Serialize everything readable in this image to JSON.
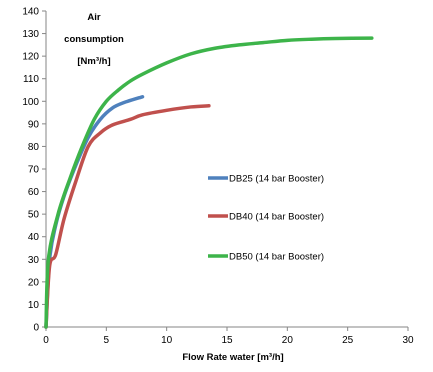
{
  "chart_data": {
    "type": "line",
    "xlabel": "Flow Rate water [m³/h]",
    "ylabel_lines": [
      "Air",
      "consumption",
      "[Nm³/h]"
    ],
    "xlim": [
      0,
      30
    ],
    "ylim": [
      0,
      140
    ],
    "x_ticks": [
      0,
      5,
      10,
      15,
      20,
      25,
      30
    ],
    "y_ticks": [
      0,
      10,
      20,
      30,
      40,
      50,
      60,
      70,
      80,
      90,
      100,
      110,
      120,
      130,
      140
    ],
    "grid": false,
    "legend_position": "right",
    "series": [
      {
        "name": "DB25 (14 bar Booster)",
        "color": "#4F81BD",
        "points": [
          [
            0,
            0
          ],
          [
            0.3,
            30
          ],
          [
            0.8,
            45
          ],
          [
            1.5,
            58
          ],
          [
            2.5,
            72
          ],
          [
            3.5,
            84
          ],
          [
            4.5,
            92
          ],
          [
            5.5,
            97
          ],
          [
            6.5,
            99.5
          ],
          [
            8,
            102
          ]
        ]
      },
      {
        "name": "DB40 (14 bar Booster)",
        "color": "#C0504D",
        "points": [
          [
            0,
            0
          ],
          [
            0.3,
            27
          ],
          [
            0.8,
            32
          ],
          [
            1.5,
            48
          ],
          [
            2.5,
            65
          ],
          [
            3.5,
            80
          ],
          [
            4.5,
            86
          ],
          [
            5.5,
            89.5
          ],
          [
            7,
            92
          ],
          [
            8,
            94
          ],
          [
            10,
            96
          ],
          [
            12,
            97.5
          ],
          [
            13.5,
            98
          ]
        ]
      },
      {
        "name": "DB50 (14 bar Booster)",
        "color": "#3DB44A",
        "points": [
          [
            0,
            0
          ],
          [
            0.2,
            30
          ],
          [
            1,
            50
          ],
          [
            2,
            66
          ],
          [
            3,
            80
          ],
          [
            4,
            92
          ],
          [
            5,
            100
          ],
          [
            6,
            105
          ],
          [
            7,
            109
          ],
          [
            8,
            112
          ],
          [
            10,
            117
          ],
          [
            12,
            121
          ],
          [
            14,
            123.5
          ],
          [
            16,
            125
          ],
          [
            18,
            126
          ],
          [
            20,
            127
          ],
          [
            22,
            127.5
          ],
          [
            24,
            127.8
          ],
          [
            27,
            128
          ]
        ]
      }
    ]
  }
}
